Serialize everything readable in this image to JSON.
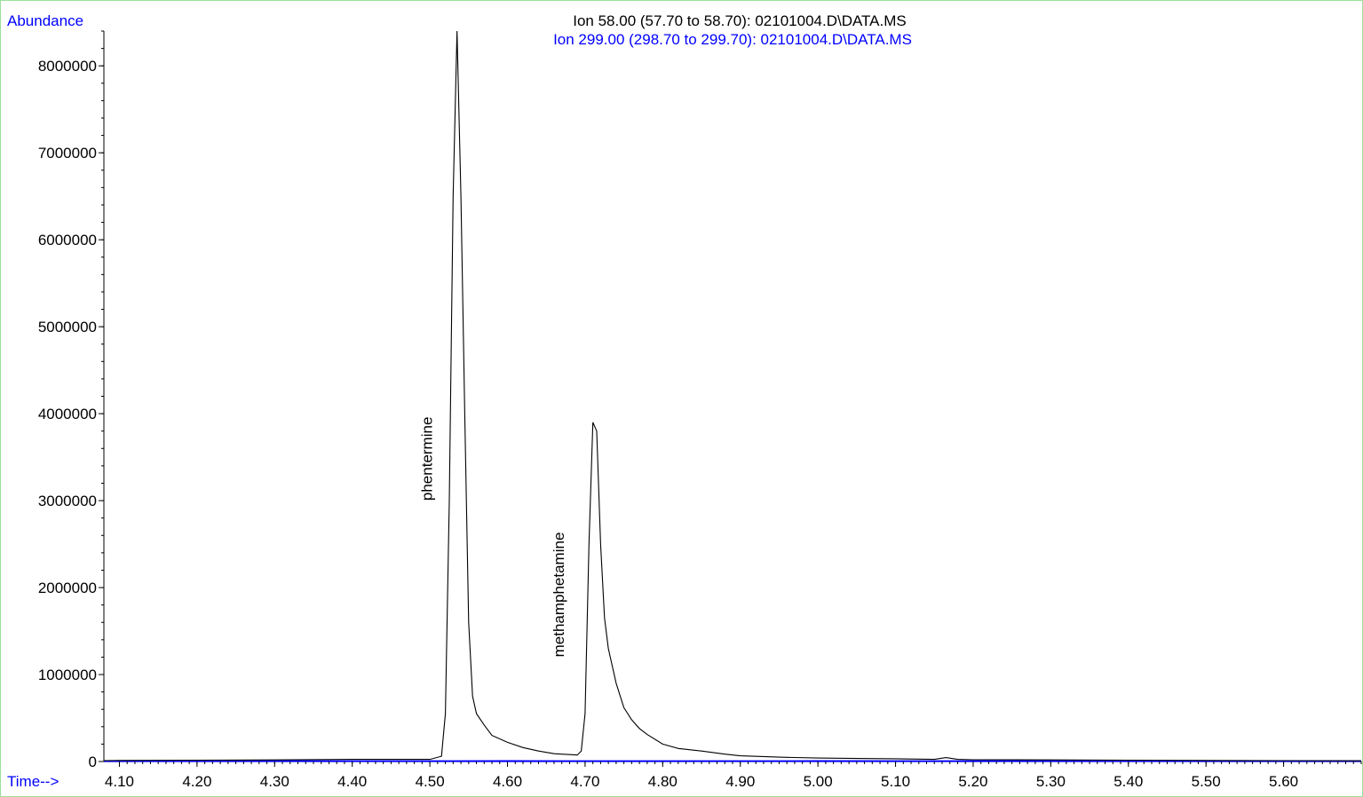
{
  "chart_data": {
    "type": "line",
    "ylabel": "Abundance",
    "xlabel": "Time-->",
    "legend": [
      {
        "text": "Ion  58.00 (57.70 to 58.70): 02101004.D\\DATA.MS",
        "color": "#000000"
      },
      {
        "text": "Ion 299.00 (298.70 to 299.70): 02101004.D\\DATA.MS",
        "color": "#0000ff"
      }
    ],
    "xlim": [
      4.08,
      5.7
    ],
    "ylim": [
      0,
      8400000
    ],
    "x_ticks": [
      4.1,
      4.2,
      4.3,
      4.4,
      4.5,
      4.6,
      4.7,
      4.8,
      4.9,
      5.0,
      5.1,
      5.2,
      5.3,
      5.4,
      5.5,
      5.6
    ],
    "x_tick_labels": [
      "4.10",
      "4.20",
      "4.30",
      "4.40",
      "4.50",
      "4.60",
      "4.70",
      "4.80",
      "4.90",
      "5.00",
      "5.10",
      "5.20",
      "5.30",
      "5.40",
      "5.50",
      "5.60"
    ],
    "y_ticks": [
      0,
      1000000,
      2000000,
      3000000,
      4000000,
      5000000,
      6000000,
      7000000,
      8000000
    ],
    "y_tick_labels": [
      "0",
      "1000000",
      "2000000",
      "3000000",
      "4000000",
      "5000000",
      "6000000",
      "7000000",
      "8000000"
    ],
    "series": [
      {
        "name": "Ion  58.00 (57.70 to 58.70): 02101004.D\\DATA.MS",
        "color": "#000000",
        "x": [
          4.08,
          4.1,
          4.2,
          4.3,
          4.4,
          4.45,
          4.5,
          4.515,
          4.52,
          4.525,
          4.53,
          4.535,
          4.54,
          4.545,
          4.55,
          4.555,
          4.56,
          4.57,
          4.58,
          4.6,
          4.62,
          4.64,
          4.66,
          4.68,
          4.69,
          4.695,
          4.7,
          4.705,
          4.71,
          4.715,
          4.72,
          4.725,
          4.73,
          4.74,
          4.75,
          4.76,
          4.77,
          4.78,
          4.8,
          4.82,
          4.85,
          4.88,
          4.9,
          4.95,
          5.0,
          5.05,
          5.1,
          5.15,
          5.165,
          5.18,
          5.2,
          5.3,
          5.4,
          5.5,
          5.6,
          5.7
        ],
        "y": [
          10000,
          12000,
          15000,
          18000,
          25000,
          25000,
          25000,
          60000,
          550000,
          3000000,
          6500000,
          8400000,
          6500000,
          4000000,
          1600000,
          750000,
          550000,
          420000,
          300000,
          220000,
          160000,
          120000,
          90000,
          80000,
          75000,
          120000,
          550000,
          2500000,
          3900000,
          3800000,
          2500000,
          1650000,
          1300000,
          900000,
          620000,
          480000,
          380000,
          310000,
          200000,
          150000,
          120000,
          85000,
          65000,
          50000,
          40000,
          35000,
          32000,
          25000,
          45000,
          25000,
          20000,
          18000,
          15000,
          12000,
          10000,
          8000
        ]
      },
      {
        "name": "Ion 299.00 (298.70 to 299.70): 02101004.D\\DATA.MS",
        "color": "#0000ff",
        "x": [
          4.08,
          4.2,
          4.4,
          4.6,
          4.8,
          5.0,
          5.2,
          5.4,
          5.6,
          5.7
        ],
        "y": [
          8000,
          9000,
          8000,
          9000,
          8000,
          9000,
          8000,
          9000,
          8000,
          8000
        ]
      }
    ],
    "annotations": [
      {
        "text": "phentermine",
        "x": 4.537,
        "y": 3000000
      },
      {
        "text": "methamphetamine",
        "x": 4.707,
        "y": 1200000
      }
    ]
  }
}
